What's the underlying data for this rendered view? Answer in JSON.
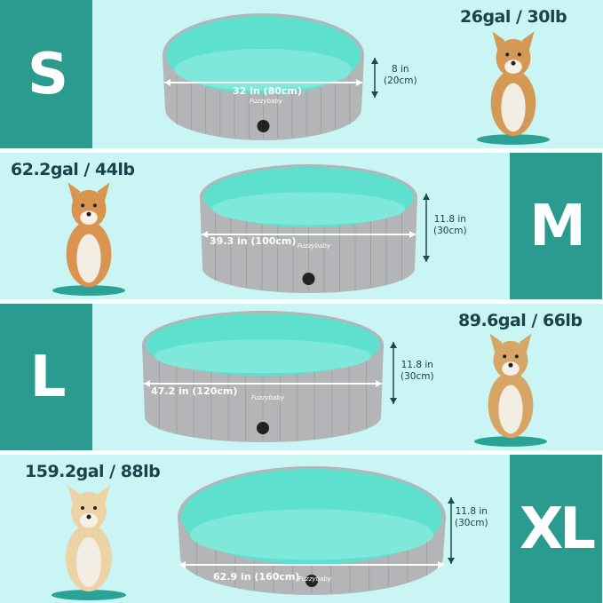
{
  "brand": "Fuzzybaby",
  "colors": {
    "background": "#c9f6f5",
    "size_box": "#2b9a8f",
    "pool_outer": "#b3b5b7",
    "pool_inner": "#5ee0cf",
    "text_dark": "#18444c"
  },
  "sizes": [
    {
      "size": "S",
      "capacity": "26gal / 30lb",
      "diameter": "32 in (80cm)",
      "height_in": "8 in",
      "height_cm": "(20cm)"
    },
    {
      "size": "M",
      "capacity": "62.2gal / 44lb",
      "diameter": "39.3 in (100cm)",
      "height_in": "11.8 in",
      "height_cm": "(30cm)"
    },
    {
      "size": "L",
      "capacity": "89.6gal / 66lb",
      "diameter": "47.2 in (120cm)",
      "height_in": "11.8 in",
      "height_cm": "(30cm)"
    },
    {
      "size": "XL",
      "capacity": "159.2gal / 88lb",
      "diameter": "62.9 in (160cm)",
      "height_in": "11.8 in",
      "height_cm": "(30cm)"
    }
  ]
}
